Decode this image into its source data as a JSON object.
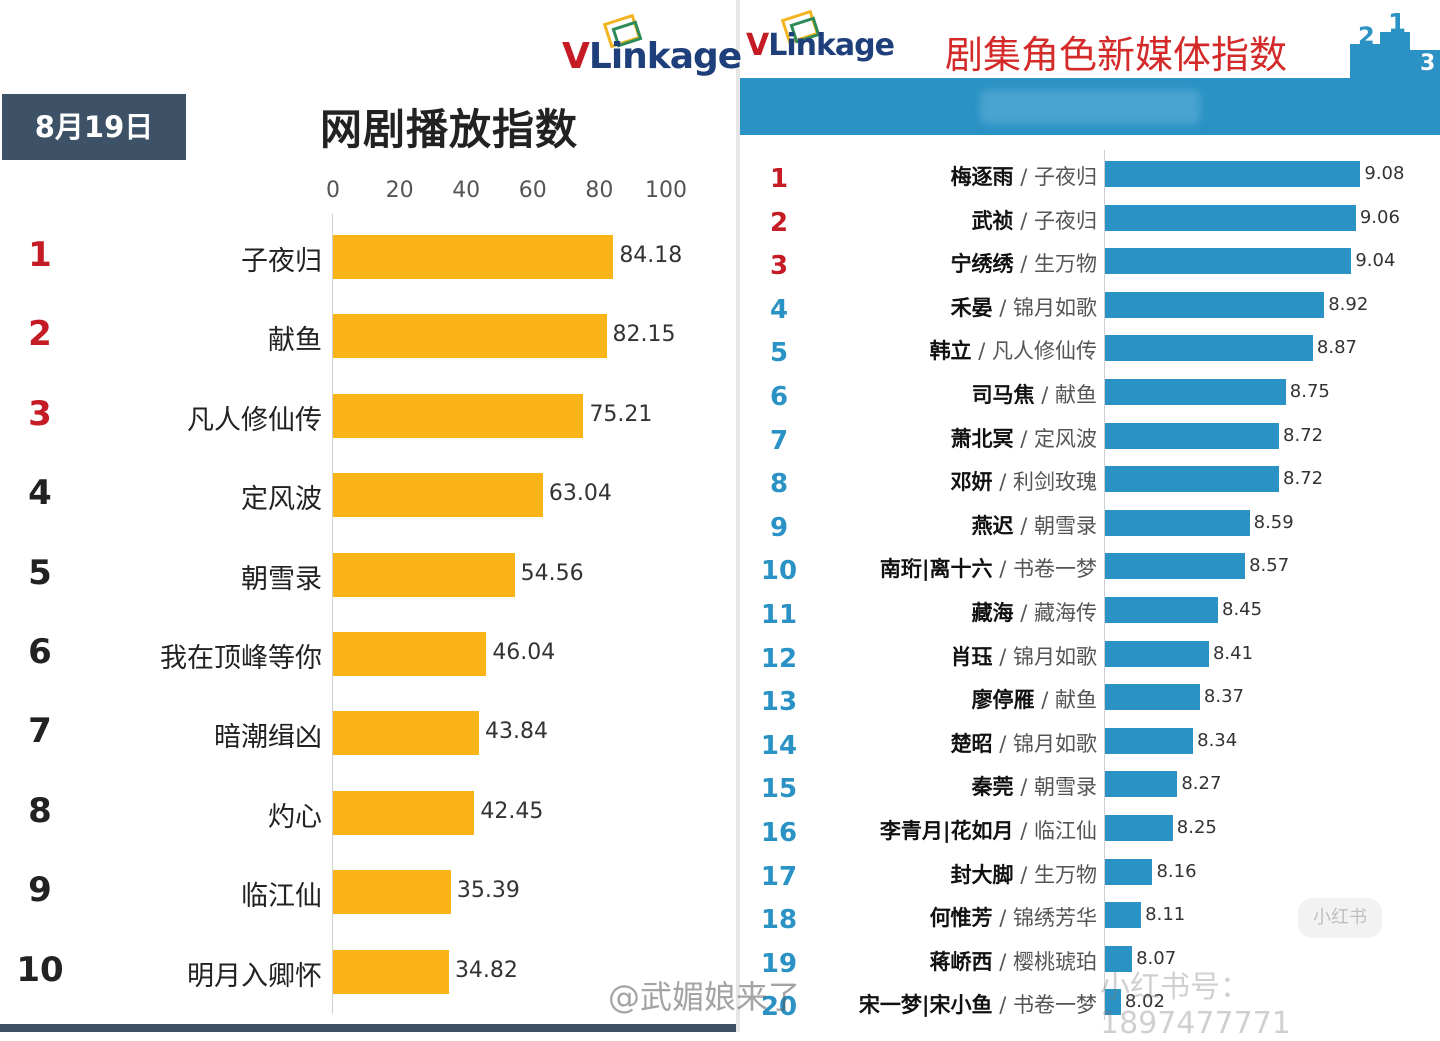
{
  "left": {
    "logo": {
      "v": "V",
      "rest": "Linkage"
    },
    "date": "8月19日",
    "title": "网剧播放指数"
  },
  "right": {
    "logo": {
      "v": "V",
      "rest": "Linkage"
    },
    "title": "剧集角色新媒体指数"
  },
  "chart_data": [
    {
      "type": "bar",
      "orientation": "horizontal",
      "title": "网剧播放指数",
      "ticks": [
        "0",
        "20",
        "40",
        "60",
        "80",
        "100"
      ],
      "xlim": [
        0,
        100
      ],
      "ranks": [
        "1",
        "2",
        "3",
        "4",
        "5",
        "6",
        "7",
        "8",
        "9",
        "10"
      ],
      "categories": [
        "子夜归",
        "献鱼",
        "凡人修仙传",
        "定风波",
        "朝雪录",
        "我在顶峰等你",
        "暗潮缉凶",
        "灼心",
        "临江仙",
        "明月入卿怀"
      ],
      "values": [
        84.18,
        82.15,
        75.21,
        63.04,
        54.56,
        46.04,
        43.84,
        42.45,
        35.39,
        34.82
      ],
      "value_labels": [
        "84.18",
        "82.15",
        "75.21",
        "63.04",
        "54.56",
        "46.04",
        "43.84",
        "42.45",
        "35.39",
        "34.82"
      ],
      "bar_color": "#fbb417",
      "top_rank_color": "#c41b24",
      "rank_color": "#222222"
    },
    {
      "type": "bar",
      "orientation": "horizontal",
      "title": "剧集角色新媒体指数",
      "ranks": [
        "1",
        "2",
        "3",
        "4",
        "5",
        "6",
        "7",
        "8",
        "9",
        "10",
        "11",
        "12",
        "13",
        "14",
        "15",
        "16",
        "17",
        "18",
        "19",
        "20"
      ],
      "characters": [
        "梅逐雨",
        "武祯",
        "宁绣绣",
        "禾晏",
        "韩立",
        "司马焦",
        "萧北冥",
        "邓妍",
        "燕迟",
        "南珩|离十六",
        "藏海",
        "肖珏",
        "廖停雁",
        "楚昭",
        "秦莞",
        "李青月|花如月",
        "封大脚",
        "何惟芳",
        "蒋峤西",
        "宋一梦|宋小鱼"
      ],
      "shows": [
        "子夜归",
        "子夜归",
        "生万物",
        "锦月如歌",
        "凡人修仙传",
        "献鱼",
        "定风波",
        "利剑玫瑰",
        "朝雪录",
        "书卷一梦",
        "藏海传",
        "锦月如歌",
        "献鱼",
        "锦月如歌",
        "朝雪录",
        "临江仙",
        "生万物",
        "锦绣芳华",
        "樱桃琥珀",
        "书卷一梦"
      ],
      "separator": "/",
      "values": [
        9.08,
        9.06,
        9.04,
        8.92,
        8.87,
        8.75,
        8.72,
        8.72,
        8.59,
        8.57,
        8.45,
        8.41,
        8.37,
        8.34,
        8.27,
        8.25,
        8.16,
        8.11,
        8.07,
        8.02
      ],
      "value_labels": [
        "9.08",
        "9.06",
        "9.04",
        "8.92",
        "8.87",
        "8.75",
        "8.72",
        "8.72",
        "8.59",
        "8.57",
        "8.45",
        "8.41",
        "8.37",
        "8.34",
        "8.27",
        "8.25",
        "8.16",
        "8.11",
        "8.07",
        "8.02"
      ],
      "bar_color": "#2a92c4",
      "top_rank_color": "#c41b24",
      "rank_color": "#2a92c4"
    }
  ],
  "watermarks": {
    "weibo": "@武媚娘来了",
    "xhs": "小红书号：1897477771",
    "xhs_logo": "小红书"
  }
}
